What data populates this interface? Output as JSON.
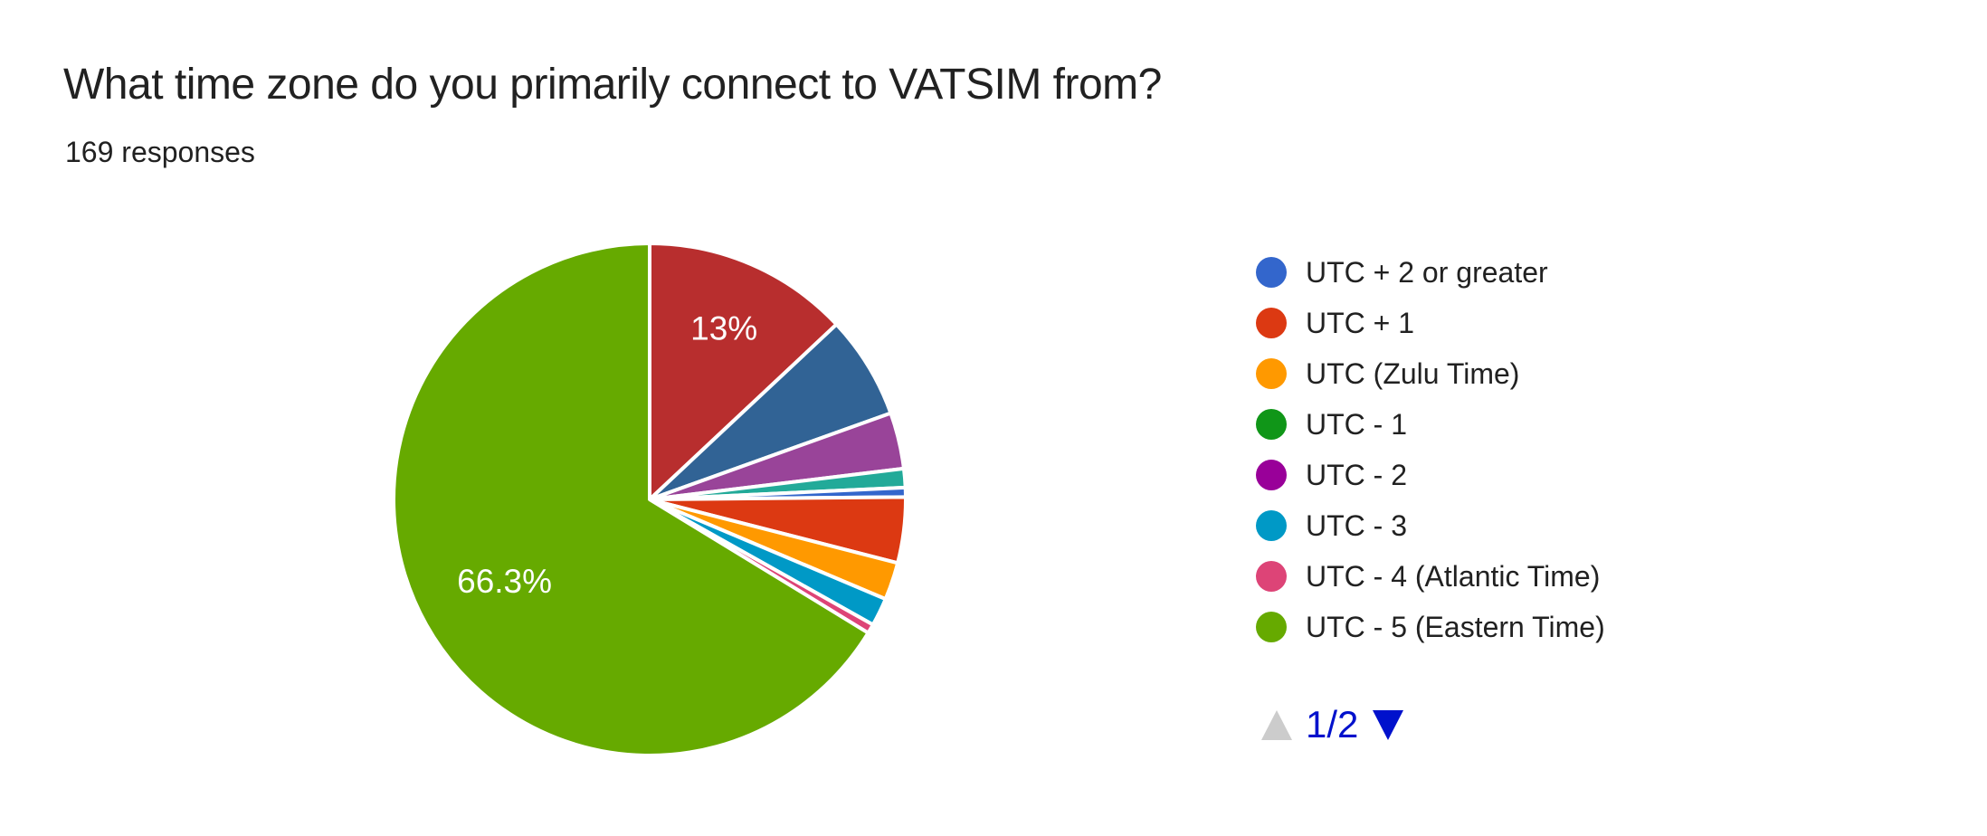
{
  "header": {
    "title": "What time zone do you primarily connect to VATSIM from?",
    "subtitle": "169 responses"
  },
  "chart_data": {
    "type": "pie",
    "title": "What time zone do you primarily connect to VATSIM from?",
    "subtitle": "169 responses",
    "total_responses": 169,
    "rotation": "first slice starts at 12 o'clock, clockwise",
    "slice_border_color": "#FFFFFF",
    "data_label_color": "#FFFFFF",
    "legend_position": "right",
    "slices": [
      {
        "color": "#B82E2E",
        "count": 22,
        "percent": 13.0,
        "data_label": "13%"
      },
      {
        "color": "#316395",
        "count": 11,
        "percent": 6.5,
        "data_label": ""
      },
      {
        "color": "#994499",
        "count": 6,
        "percent": 3.6,
        "data_label": ""
      },
      {
        "color": "#22AA99",
        "count": 2,
        "percent": 1.2,
        "data_label": ""
      },
      {
        "color": "#3366CC",
        "count": 1,
        "percent": 0.6,
        "data_label": "",
        "legend_label": "UTC + 2 or greater"
      },
      {
        "color": "#DC3912",
        "count": 7,
        "percent": 4.1,
        "data_label": "",
        "legend_label": "UTC + 1"
      },
      {
        "color": "#FF9900",
        "count": 4,
        "percent": 2.4,
        "data_label": "",
        "legend_label": "UTC (Zulu Time)"
      },
      {
        "color": "#0099C6",
        "count": 3,
        "percent": 1.8,
        "data_label": "",
        "legend_label": "UTC - 3"
      },
      {
        "color": "#DD4477",
        "count": 1,
        "percent": 0.6,
        "data_label": "",
        "legend_label": "UTC - 4 (Atlantic Time)"
      },
      {
        "color": "#66AA00",
        "count": 112,
        "percent": 66.3,
        "data_label": "66.3%",
        "legend_label": "UTC - 5 (Eastern Time)"
      }
    ]
  },
  "legend": {
    "entries": [
      {
        "label": "UTC + 2 or greater",
        "color": "#3366CC"
      },
      {
        "label": "UTC + 1",
        "color": "#DC3912"
      },
      {
        "label": "UTC (Zulu Time)",
        "color": "#FF9900"
      },
      {
        "label": "UTC - 1",
        "color": "#109618"
      },
      {
        "label": "UTC - 2",
        "color": "#990099"
      },
      {
        "label": "UTC - 3",
        "color": "#0099C6"
      },
      {
        "label": "UTC - 4 (Atlantic Time)",
        "color": "#DD4477"
      },
      {
        "label": "UTC - 5 (Eastern Time)",
        "color": "#66AA00"
      }
    ],
    "pager": {
      "page_label": "1/2",
      "prev_enabled": false,
      "next_enabled": true,
      "active_color": "#0011CC",
      "disabled_color": "#CCCCCC"
    }
  }
}
